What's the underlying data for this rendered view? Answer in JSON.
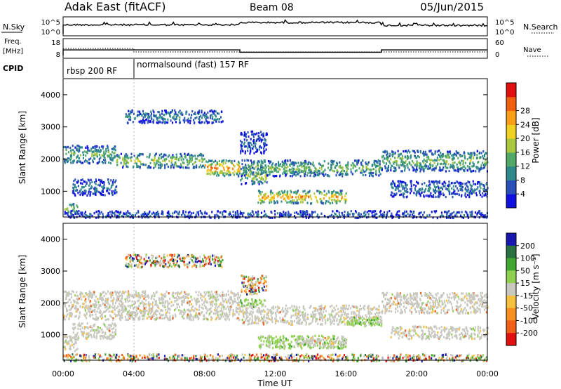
{
  "header": {
    "station": "Adak East (fitACF)",
    "beam": "Beam 08",
    "date": "05/Jun/2015"
  },
  "panels": {
    "nsky_label": "N.Sky",
    "nsearch_label": "N.Search",
    "freq_label_1": "Freq.",
    "freq_label_2": "[MHz]",
    "nave_label": "Nave",
    "cpid_label": "CPID",
    "count_left_ticks": [
      "10^5",
      "10^0"
    ],
    "count_right_ticks": [
      "10^5",
      "10^0"
    ],
    "freq_ticks": [
      "18",
      "8"
    ],
    "nave_ticks": [
      "60",
      "0"
    ],
    "cpid_segments": [
      {
        "label": "rbsp 200 RF",
        "start": 0,
        "end": 4
      },
      {
        "label": "normalsound (fast) 157 RF",
        "start": 4,
        "end": 24
      }
    ]
  },
  "chart_data": [
    {
      "type": "heatmap",
      "name": "power",
      "xlabel": "",
      "ylabel": "Slant Range [km]",
      "xlim": [
        0,
        24
      ],
      "ylim": [
        200,
        4500
      ],
      "yticks": [
        "1000",
        "2000",
        "3000",
        "4000"
      ],
      "colorbar": {
        "label": "Power [dB]",
        "ticks": [
          "4",
          "8",
          "12",
          "16",
          "20",
          "24",
          "28"
        ],
        "colors": [
          "#1010e0",
          "#2850b8",
          "#2e8a8a",
          "#52a868",
          "#a8c840",
          "#f0d020",
          "#f8a018",
          "#f06010",
          "#e01010"
        ]
      },
      "bands": [
        {
          "t0": 0.0,
          "t1": 0.8,
          "r0": 280,
          "r1": 650,
          "level": 0.55
        },
        {
          "t0": 0.0,
          "t1": 3.0,
          "r0": 1900,
          "r1": 2450,
          "level": 0.45
        },
        {
          "t0": 3.0,
          "t1": 8.0,
          "r0": 1750,
          "r1": 2200,
          "level": 0.5
        },
        {
          "t0": 8.0,
          "t1": 10.0,
          "r0": 1500,
          "r1": 2000,
          "level": 0.8
        },
        {
          "t0": 0.5,
          "t1": 3.0,
          "r0": 900,
          "r1": 1400,
          "level": 0.25
        },
        {
          "t0": 3.5,
          "t1": 9.0,
          "r0": 3150,
          "r1": 3550,
          "level": 0.3
        },
        {
          "t0": 10.0,
          "t1": 11.5,
          "r0": 1250,
          "r1": 1800,
          "level": 0.55
        },
        {
          "t0": 10.0,
          "t1": 18.0,
          "r0": 1500,
          "r1": 2000,
          "level": 0.45
        },
        {
          "t0": 11.0,
          "t1": 16.0,
          "r0": 650,
          "r1": 1050,
          "level": 0.75
        },
        {
          "t0": 10.0,
          "t1": 11.5,
          "r0": 2200,
          "r1": 2900,
          "level": 0.2
        },
        {
          "t0": 18.0,
          "t1": 24.0,
          "r0": 1650,
          "r1": 2300,
          "level": 0.45
        },
        {
          "t0": 18.5,
          "t1": 24.0,
          "r0": 850,
          "r1": 1350,
          "level": 0.25
        },
        {
          "t0": 0.0,
          "t1": 24.0,
          "r0": 200,
          "r1": 420,
          "level": 0.2
        }
      ]
    },
    {
      "type": "heatmap",
      "name": "velocity",
      "xlabel": "Time UT",
      "ylabel": "Slant Range [km]",
      "xlim": [
        0,
        24
      ],
      "ylim": [
        200,
        4500
      ],
      "xticks": [
        "00:00",
        "04:00",
        "08:00",
        "12:00",
        "16:00",
        "20:00",
        "00:00"
      ],
      "yticks": [
        "1000",
        "2000",
        "3000",
        "4000"
      ],
      "colorbar": {
        "label": "Velocity [m s⁻¹]",
        "ticks": [
          "200",
          "100",
          "50",
          "15",
          "-15",
          "-50",
          "-100",
          "-200"
        ],
        "colors": [
          "#1818b0",
          "#2a7040",
          "#40a830",
          "#90d050",
          "#c8c8c0",
          "#f8c040",
          "#f89020",
          "#f06018",
          "#e01010"
        ]
      },
      "bands": [
        {
          "t0": 0.0,
          "t1": 0.8,
          "r0": 500,
          "r1": 1000,
          "kind": "gray"
        },
        {
          "t0": 0.0,
          "t1": 10.0,
          "r0": 1500,
          "r1": 2400,
          "kind": "gray"
        },
        {
          "t0": 0.5,
          "t1": 3.0,
          "r0": 900,
          "r1": 1400,
          "kind": "gray"
        },
        {
          "t0": 3.5,
          "t1": 9.0,
          "r0": 3150,
          "r1": 3550,
          "kind": "mixed"
        },
        {
          "t0": 10.0,
          "t1": 11.5,
          "r0": 1900,
          "r1": 2150,
          "kind": "green"
        },
        {
          "t0": 10.0,
          "t1": 18.0,
          "r0": 1350,
          "r1": 1950,
          "kind": "gray"
        },
        {
          "t0": 11.0,
          "t1": 16.0,
          "r0": 600,
          "r1": 1000,
          "kind": "green"
        },
        {
          "t0": 13.0,
          "t1": 16.0,
          "r0": 650,
          "r1": 950,
          "kind": "gray"
        },
        {
          "t0": 16.0,
          "t1": 18.0,
          "r0": 1300,
          "r1": 1600,
          "kind": "green"
        },
        {
          "t0": 10.0,
          "t1": 11.5,
          "r0": 2300,
          "r1": 2900,
          "kind": "mixed"
        },
        {
          "t0": 18.0,
          "t1": 24.0,
          "r0": 1700,
          "r1": 2350,
          "kind": "gray"
        },
        {
          "t0": 18.5,
          "t1": 24.0,
          "r0": 900,
          "r1": 1300,
          "kind": "gray"
        },
        {
          "t0": 0.0,
          "t1": 24.0,
          "r0": 200,
          "r1": 420,
          "kind": "mixed"
        }
      ]
    }
  ]
}
